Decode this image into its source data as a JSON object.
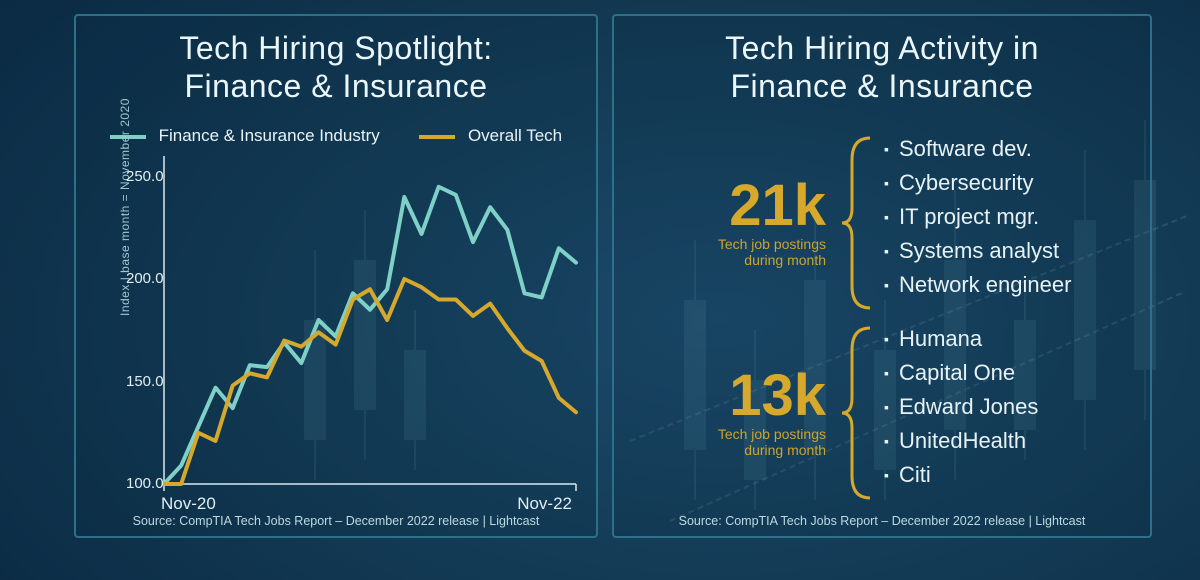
{
  "background": {
    "gradient_center": "#1b4a6b",
    "gradient_edge": "#061a2b",
    "candle_color": "#8fd3e0",
    "panel_border": "#2e6f8a"
  },
  "left": {
    "title_line1": "Tech Hiring Spotlight:",
    "title_line2": "Finance & Insurance",
    "title_color": "#eaf6f9",
    "title_fontsize": 32,
    "chart": {
      "type": "line",
      "yaxis_label": "Index | base month = November 2020",
      "yaxis_label_color": "#9fc7d2",
      "ymin": 100.0,
      "ymax": 260.0,
      "yticks": [
        100.0,
        150.0,
        200.0,
        250.0
      ],
      "ytick_labels": [
        "100.0",
        "150.0",
        "200.0",
        "250.0"
      ],
      "xticks": [
        0,
        24
      ],
      "xtick_labels": [
        "Nov-20",
        "Nov-22"
      ],
      "axis_color": "#d8eaef",
      "tick_font_size": 15,
      "legend": [
        {
          "label": "Finance & Insurance Industry",
          "color": "#7fd1c8"
        },
        {
          "label": "Overall Tech",
          "color": "#d6a92c"
        }
      ],
      "series": [
        {
          "name": "Finance & Insurance Industry",
          "color": "#7fd1c8",
          "width": 4,
          "y": [
            100,
            109,
            128,
            147,
            137,
            158,
            157,
            169,
            159,
            180,
            172,
            193,
            185,
            195,
            240,
            222,
            245,
            241,
            218,
            235,
            224,
            193,
            191,
            215,
            208
          ]
        },
        {
          "name": "Overall Tech",
          "color": "#d6a92c",
          "width": 4,
          "y": [
            100,
            100,
            125,
            121,
            148,
            154,
            152,
            170,
            167,
            174,
            168,
            190,
            195,
            180,
            200,
            196,
            190,
            190,
            182,
            188,
            176,
            165,
            160,
            142,
            135
          ]
        }
      ],
      "x_count": 25
    },
    "source": "Source: CompTIA Tech Jobs Report – December 2022 release | Lightcast",
    "source_color": "#bcd9e0"
  },
  "right": {
    "title_line1": "Tech Hiring Activity in",
    "title_line2": "Finance & Insurance",
    "groups": [
      {
        "number": "21k",
        "number_color": "#d6a92c",
        "sub_line1": "Tech job postings",
        "sub_line2": "during month",
        "bracket_color": "#d6a92c",
        "item_bullet_color": "#e6f2f5",
        "items": [
          "Software dev.",
          "Cybersecurity",
          "IT project mgr.",
          "Systems analyst",
          "Network engineer"
        ]
      },
      {
        "number": "13k",
        "number_color": "#d6a92c",
        "sub_line1": "Tech job postings",
        "sub_line2": "during month",
        "bracket_color": "#d6a92c",
        "item_bullet_color": "#e6f2f5",
        "items": [
          "Humana",
          "Capital One",
          "Edward Jones",
          "UnitedHealth",
          "Citi"
        ]
      }
    ],
    "source": "Source: CompTIA Tech Jobs Report – December 2022 release | Lightcast"
  }
}
